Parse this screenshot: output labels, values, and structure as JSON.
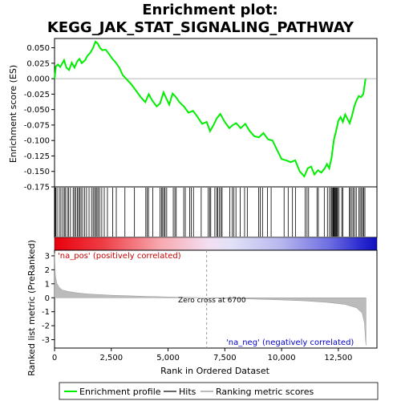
{
  "chart_data": {
    "type": "line",
    "title_line1": "Enrichment plot:",
    "title_line2": "KEGG_JAK_STAT_SIGNALING_PATHWAY",
    "top_panel": {
      "ylabel": "Enrichment score (ES)",
      "ylim": [
        -0.175,
        0.065
      ],
      "yticks": [
        0.05,
        0.025,
        0.0,
        -0.025,
        -0.05,
        -0.075,
        -0.1,
        -0.125,
        -0.15,
        -0.175
      ],
      "ytick_labels": [
        "0.050",
        "0.025",
        "0.000",
        "-0.025",
        "-0.050",
        "-0.075",
        "-0.100",
        "-0.125",
        "-0.150",
        "-0.175"
      ],
      "line_color": "#00ee00",
      "series": {
        "name": "Enrichment profile",
        "x": [
          0,
          60,
          150,
          250,
          330,
          420,
          520,
          640,
          760,
          880,
          1000,
          1100,
          1200,
          1350,
          1450,
          1580,
          1700,
          1800,
          1900,
          2000,
          2100,
          2250,
          2400,
          2550,
          2700,
          2850,
          3000,
          3200,
          3400,
          3600,
          3800,
          4000,
          4150,
          4300,
          4500,
          4650,
          4800,
          4900,
          5050,
          5200,
          5350,
          5500,
          5700,
          5900,
          6100,
          6300,
          6500,
          6700,
          6850,
          7000,
          7150,
          7300,
          7500,
          7700,
          7850,
          8000,
          8200,
          8400,
          8600,
          8800,
          9000,
          9200,
          9400,
          9600,
          9800,
          10000,
          10200,
          10400,
          10600,
          10800,
          11000,
          11150,
          11300,
          11450,
          11600,
          11750,
          11900,
          12000,
          12100,
          12200,
          12300,
          12400,
          12500,
          12600,
          12700,
          12800,
          12900,
          13000,
          13100,
          13200,
          13300,
          13400,
          13500,
          13600,
          13700
        ],
        "y": [
          0.0,
          0.02,
          0.023,
          0.019,
          0.024,
          0.03,
          0.018,
          0.014,
          0.026,
          0.018,
          0.028,
          0.032,
          0.025,
          0.03,
          0.037,
          0.042,
          0.05,
          0.06,
          0.057,
          0.05,
          0.046,
          0.047,
          0.04,
          0.032,
          0.026,
          0.018,
          0.006,
          -0.002,
          -0.01,
          -0.02,
          -0.03,
          -0.038,
          -0.025,
          -0.035,
          -0.045,
          -0.04,
          -0.022,
          -0.03,
          -0.042,
          -0.024,
          -0.03,
          -0.038,
          -0.045,
          -0.055,
          -0.052,
          -0.062,
          -0.073,
          -0.07,
          -0.085,
          -0.075,
          -0.064,
          -0.057,
          -0.07,
          -0.08,
          -0.075,
          -0.072,
          -0.08,
          -0.073,
          -0.085,
          -0.093,
          -0.095,
          -0.088,
          -0.098,
          -0.1,
          -0.115,
          -0.13,
          -0.132,
          -0.135,
          -0.132,
          -0.15,
          -0.158,
          -0.145,
          -0.142,
          -0.155,
          -0.148,
          -0.152,
          -0.145,
          -0.138,
          -0.145,
          -0.128,
          -0.1,
          -0.085,
          -0.068,
          -0.062,
          -0.07,
          -0.058,
          -0.065,
          -0.072,
          -0.06,
          -0.045,
          -0.035,
          -0.028,
          -0.03,
          -0.025,
          0.0
        ]
      }
    },
    "hits": {
      "label": "Hits",
      "positions": [
        20,
        55,
        110,
        210,
        280,
        360,
        430,
        470,
        560,
        620,
        700,
        820,
        880,
        940,
        1010,
        1060,
        1110,
        1170,
        1240,
        1330,
        1410,
        1520,
        1630,
        1700,
        1760,
        1820,
        1870,
        1920,
        1990,
        2080,
        2190,
        2330,
        2560,
        2720,
        3100,
        3520,
        4020,
        4080,
        4140,
        4330,
        4650,
        4710,
        4760,
        4820,
        4870,
        4940,
        5230,
        5300,
        5360,
        5690,
        5760,
        5950,
        6020,
        6120,
        6460,
        6770,
        6830,
        6880,
        7060,
        7140,
        7190,
        7260,
        7330,
        7380,
        7720,
        7830,
        7900,
        7990,
        8180,
        8370,
        8490,
        8990,
        9060,
        9160,
        9380,
        9540,
        10110,
        10290,
        10480,
        10610,
        11040,
        11120,
        11190,
        11560,
        11620,
        11880,
        12020,
        12110,
        12180,
        12220,
        12260,
        12290,
        12320,
        12350,
        12380,
        12410,
        12440,
        12470,
        12530,
        12650,
        12700,
        12990,
        13030,
        13100,
        13160,
        13220,
        13290,
        13400,
        13460,
        13520,
        13570,
        13620,
        13670
      ]
    },
    "rank_panel": {
      "ylabel": "Ranked list metric (PreRanked)",
      "xlabel": "Rank in Ordered Dataset",
      "ylim": [
        -3.6,
        3.4
      ],
      "yticks": [
        3,
        2,
        1,
        0,
        -1,
        -2,
        -3
      ],
      "ytick_labels": [
        "3",
        "2",
        "1",
        "0",
        "-1",
        "-2",
        "-3"
      ],
      "xlim": [
        0,
        14200
      ],
      "xticks": [
        0,
        2500,
        5000,
        7500,
        10000,
        12500
      ],
      "xtick_labels": [
        "0",
        "2,500",
        "5,000",
        "7,500",
        "10,000",
        "12,500"
      ],
      "metric_x": [
        0,
        40,
        100,
        200,
        350,
        600,
        1000,
        1500,
        2500,
        4000,
        5500,
        6700,
        8000,
        9500,
        11000,
        12000,
        12800,
        13300,
        13550,
        13650,
        13700,
        13720
      ],
      "metric_y": [
        3.2,
        1.6,
        1.05,
        0.75,
        0.55,
        0.45,
        0.35,
        0.27,
        0.18,
        0.1,
        0.04,
        0.0,
        -0.06,
        -0.13,
        -0.22,
        -0.33,
        -0.48,
        -0.72,
        -1.1,
        -1.8,
        -3.1,
        -3.4
      ],
      "fill_color": "#bbbbbb",
      "zero_cross_label": "Zero cross at 6700",
      "zero_cross_x": 6700,
      "pos_label": "'na_pos' (positively correlated)",
      "neg_label": "'na_neg' (negatively correlated)",
      "pos_label_color": "#cc0000",
      "neg_label_color": "#0000cc"
    },
    "total_ranks": 13720,
    "legend": {
      "items": [
        "Enrichment profile",
        "Hits",
        "Ranking metric scores"
      ],
      "colors": [
        "#00ee00",
        "#000000",
        "#bbbbbb"
      ],
      "placement": "bottom"
    },
    "grid": false
  }
}
